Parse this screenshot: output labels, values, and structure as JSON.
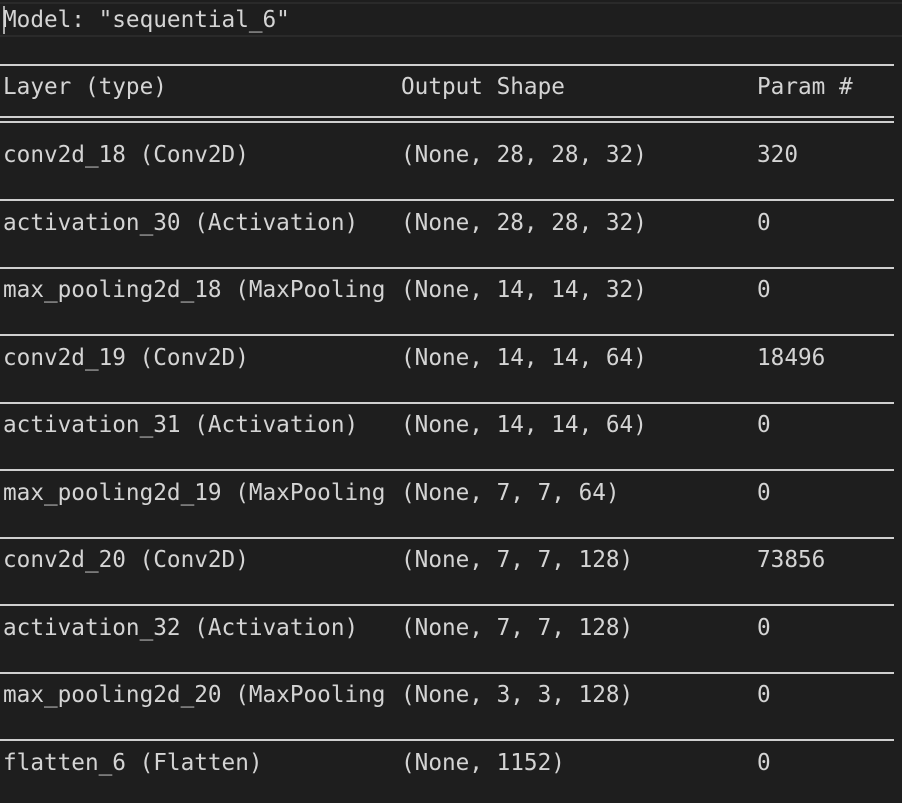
{
  "model_line": "Model: \"sequential_6\"",
  "headers": {
    "layer": "Layer (type)",
    "output": "Output Shape",
    "params": "Param #"
  },
  "rows": [
    {
      "layer": "conv2d_18 (Conv2D)",
      "output": "(None, 28, 28, 32)",
      "params": "320"
    },
    {
      "layer": "activation_30 (Activation)",
      "output": "(None, 28, 28, 32)",
      "params": "0"
    },
    {
      "layer": "max_pooling2d_18 (MaxPooling",
      "output": "(None, 14, 14, 32)",
      "params": "0"
    },
    {
      "layer": "conv2d_19 (Conv2D)",
      "output": "(None, 14, 14, 64)",
      "params": "18496"
    },
    {
      "layer": "activation_31 (Activation)",
      "output": "(None, 14, 14, 64)",
      "params": "0"
    },
    {
      "layer": "max_pooling2d_19 (MaxPooling",
      "output": "(None, 7, 7, 64)",
      "params": "0"
    },
    {
      "layer": "conv2d_20 (Conv2D)",
      "output": "(None, 7, 7, 128)",
      "params": "73856"
    },
    {
      "layer": "activation_32 (Activation)",
      "output": "(None, 7, 7, 128)",
      "params": "0"
    },
    {
      "layer": "max_pooling2d_20 (MaxPooling",
      "output": "(None, 3, 3, 128)",
      "params": "0"
    },
    {
      "layer": "flatten_6 (Flatten)",
      "output": "(None, 1152)",
      "params": "0"
    }
  ]
}
